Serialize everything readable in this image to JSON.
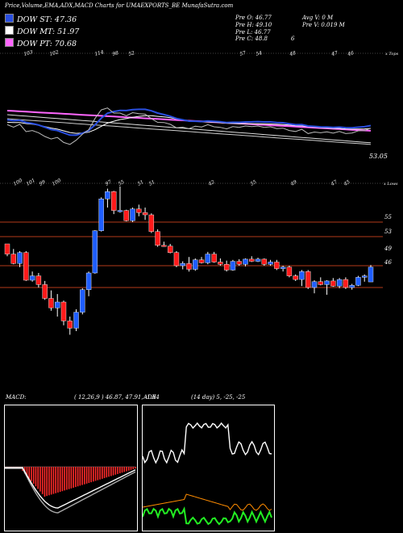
{
  "header": {
    "title": "Price,Volume,EMA,ADX,MACD Charts for UMAEXPORTS_BE MunafaSutra.com",
    "open": "Pre  O: 46.77",
    "high": "Pre  H: 49.10",
    "low": "Pre  L: 46.77",
    "close": "Pre  C: 48.8",
    "avg_vol": "Avg V: 0  M",
    "vol": "Pre  V: 0.019 M",
    "extra": "6"
  },
  "legend": [
    {
      "label": "DOW ST: 47.36",
      "color": "#2a4fe0"
    },
    {
      "label": "DOW MT: 51.97",
      "color": "#ffffff"
    },
    {
      "label": "DOW PT: 70.68",
      "color": "#ff66ff"
    }
  ],
  "ema_panel": {
    "top_labels": [
      "103",
      "102",
      "114",
      "98",
      "52",
      "57",
      "54",
      "48",
      "47",
      "46"
    ],
    "corner_label": "x Tops",
    "last_value": "53.05"
  },
  "price_panel": {
    "top_labels": [
      "100",
      "101",
      "99",
      "100",
      "97",
      "55",
      "51",
      "51",
      "42",
      "55",
      "49",
      "47",
      "45"
    ],
    "corner_label": "x Lows",
    "level_labels": [
      "55",
      "53",
      "49",
      "46"
    ]
  },
  "macd": {
    "label": "MACD:",
    "params": "( 12,26,9 ) 46.87, 47.91, -1.04"
  },
  "adx": {
    "label": "ADX",
    "params": "(14 day) 5, -25, -25"
  },
  "colors": {
    "up": "#1f5eff",
    "down": "#ff1a1a",
    "level": "#b33a1a",
    "ema_pink": "#ff66ff"
  },
  "chart_data": {
    "type": "candlestick",
    "title": "Price,Volume,EMA,ADX,MACD Charts for UMAEXPORTS_BE MunafaSutra.com",
    "ohlc": [
      [
        52.0,
        52.0,
        50.3,
        50.6
      ],
      [
        50.6,
        51.3,
        49.2,
        49.3
      ],
      [
        49.3,
        51.0,
        48.8,
        50.8
      ],
      [
        50.8,
        51.0,
        46.9,
        47.0
      ],
      [
        47.0,
        48.2,
        46.8,
        47.6
      ],
      [
        47.6,
        48.0,
        46.0,
        46.4
      ],
      [
        46.4,
        46.9,
        44.3,
        44.5
      ],
      [
        44.5,
        45.6,
        42.8,
        43.2
      ],
      [
        43.2,
        45.1,
        42.0,
        44.0
      ],
      [
        44.0,
        44.2,
        40.8,
        41.4
      ],
      [
        41.4,
        42.0,
        39.5,
        40.4
      ],
      [
        40.4,
        43.0,
        40.0,
        42.6
      ],
      [
        42.6,
        45.9,
        42.3,
        45.7
      ],
      [
        45.7,
        48.2,
        44.8,
        48.0
      ],
      [
        48.0,
        53.9,
        47.9,
        53.8
      ],
      [
        53.8,
        58.4,
        53.7,
        58.2
      ],
      [
        58.2,
        59.6,
        57.0,
        59.2
      ],
      [
        59.2,
        59.3,
        56.1,
        56.6
      ],
      [
        56.6,
        59.9,
        56.3,
        56.6
      ],
      [
        56.6,
        56.7,
        55.1,
        55.2
      ],
      [
        55.2,
        57.0,
        55.0,
        56.8
      ],
      [
        56.8,
        57.4,
        55.8,
        56.3
      ],
      [
        56.3,
        57.0,
        55.3,
        56.0
      ],
      [
        56.0,
        56.2,
        53.5,
        53.7
      ],
      [
        53.7,
        54.0,
        51.6,
        51.8
      ],
      [
        51.8,
        52.3,
        51.6,
        51.7
      ],
      [
        51.7,
        52.0,
        50.7,
        50.8
      ],
      [
        50.8,
        51.0,
        48.8,
        49.0
      ],
      [
        49.0,
        49.6,
        48.5,
        49.3
      ],
      [
        49.3,
        50.2,
        48.2,
        48.5
      ],
      [
        48.5,
        50.0,
        48.3,
        49.8
      ],
      [
        49.8,
        50.2,
        49.3,
        49.4
      ],
      [
        49.4,
        50.9,
        49.2,
        50.6
      ],
      [
        50.6,
        50.9,
        49.4,
        49.5
      ],
      [
        49.5,
        50.0,
        49.0,
        49.2
      ],
      [
        49.2,
        49.7,
        48.2,
        48.4
      ],
      [
        48.4,
        49.8,
        48.3,
        49.6
      ],
      [
        49.6,
        49.9,
        49.0,
        49.2
      ],
      [
        49.2,
        50.0,
        48.9,
        49.9
      ],
      [
        49.9,
        50.3,
        49.5,
        49.6
      ],
      [
        49.6,
        50.1,
        49.5,
        49.9
      ],
      [
        49.9,
        50.0,
        49.0,
        49.2
      ],
      [
        49.2,
        49.8,
        49.0,
        49.5
      ],
      [
        49.5,
        49.8,
        48.4,
        48.6
      ],
      [
        48.6,
        49.0,
        48.2,
        48.8
      ],
      [
        48.8,
        49.0,
        47.4,
        47.6
      ],
      [
        47.6,
        47.8,
        46.9,
        47.1
      ],
      [
        47.1,
        48.4,
        46.2,
        48.2
      ],
      [
        48.2,
        48.4,
        45.8,
        46.0
      ],
      [
        46.0,
        47.0,
        45.2,
        46.8
      ],
      [
        46.8,
        47.4,
        46.3,
        46.4
      ],
      [
        46.4,
        47.0,
        45.0,
        46.9
      ],
      [
        46.9,
        47.3,
        46.1,
        46.2
      ],
      [
        46.2,
        47.3,
        45.9,
        47.1
      ],
      [
        47.1,
        47.4,
        45.8,
        46.0
      ],
      [
        46.0,
        46.5,
        45.7,
        46.3
      ],
      [
        46.3,
        47.6,
        46.2,
        47.4
      ],
      [
        47.4,
        47.8,
        46.8,
        47.6
      ],
      [
        46.77,
        49.1,
        46.77,
        48.8
      ]
    ],
    "levels": [
      55,
      53,
      49,
      46
    ],
    "ema": {
      "short": {
        "name": "DOW ST",
        "last": 47.36
      },
      "mid": {
        "name": "DOW MT",
        "last": 51.97
      },
      "long": {
        "name": "DOW PT",
        "last": 70.68
      }
    },
    "macd_values": {
      "macd": 46.87,
      "signal": 47.91,
      "hist": -1.04
    },
    "adx_values": {
      "adx": 5,
      "plus_di": -25,
      "minus_di": -25
    }
  }
}
